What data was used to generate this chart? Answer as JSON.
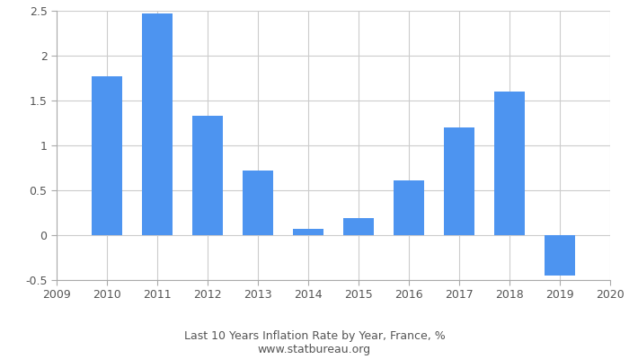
{
  "years": [
    2010,
    2011,
    2012,
    2013,
    2014,
    2015,
    2016,
    2017,
    2018,
    2019
  ],
  "values": [
    1.77,
    2.47,
    1.33,
    0.72,
    0.07,
    0.19,
    0.61,
    1.2,
    1.6,
    -0.45
  ],
  "bar_color": "#4d94f0",
  "xlim": [
    2009,
    2020
  ],
  "ylim": [
    -0.5,
    2.5
  ],
  "yticks": [
    -0.5,
    0.0,
    0.5,
    1.0,
    1.5,
    2.0,
    2.5
  ],
  "xticks": [
    2009,
    2010,
    2011,
    2012,
    2013,
    2014,
    2015,
    2016,
    2017,
    2018,
    2019,
    2020
  ],
  "title_line1": "Last 10 Years Inflation Rate by Year, France, %",
  "title_line2": "www.statbureau.org",
  "title_fontsize": 9,
  "grid_color": "#cccccc",
  "background_color": "#ffffff",
  "bar_width": 0.6,
  "spine_color": "#aaaaaa",
  "tick_color": "#555555",
  "tick_label_fontsize": 9
}
